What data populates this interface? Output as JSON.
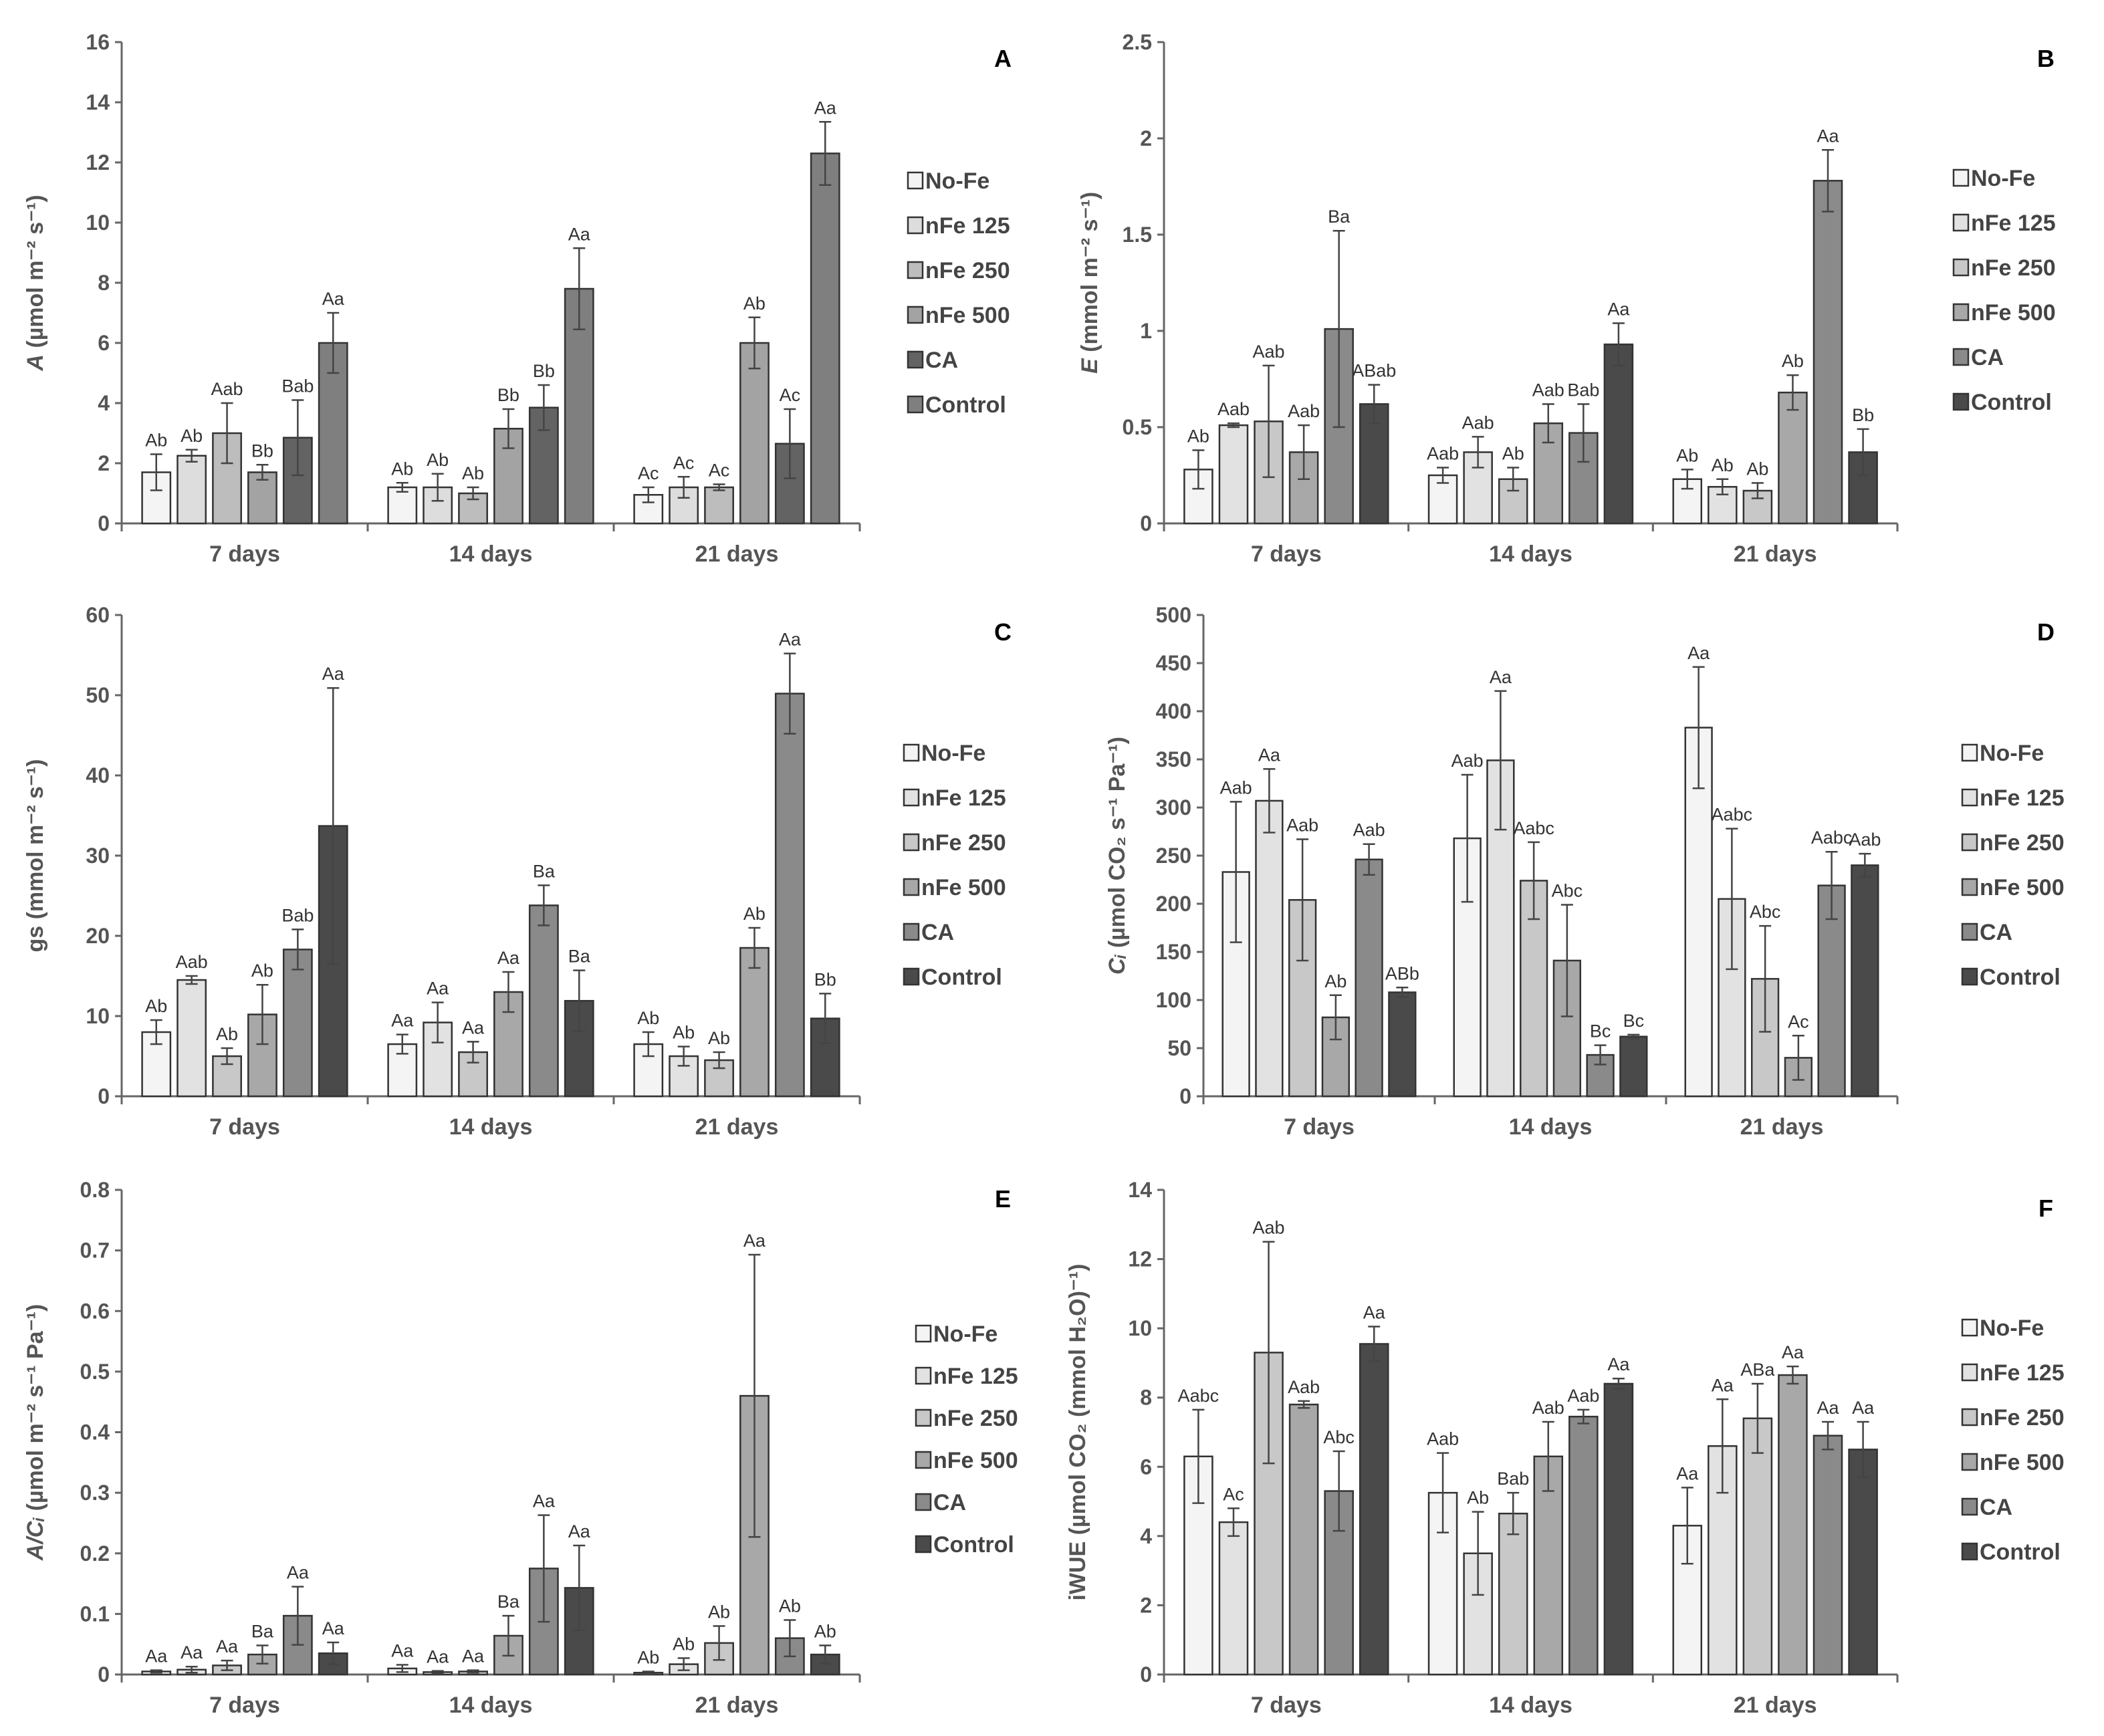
{
  "chart_data": [
    {
      "panel": "A",
      "type": "bar",
      "ylabel_italic": "A",
      "ylabel_rest": " (µmol m⁻² s⁻¹)",
      "ylim": [
        0,
        16
      ],
      "yticks": [
        "0",
        "2",
        "4",
        "6",
        "8",
        "10",
        "12",
        "14",
        "16"
      ],
      "ytick_values": [
        0,
        2,
        4,
        6,
        8,
        10,
        12,
        14,
        16
      ],
      "categories": [
        "7 days",
        "14 days",
        "21 days"
      ],
      "series": [
        {
          "name": "No-Fe",
          "color": "#f4f4f4",
          "values": [
            1.7,
            1.2,
            0.95
          ],
          "errors": [
            0.6,
            0.15,
            0.25
          ],
          "labels": [
            "Ab",
            "Ab",
            "Ac"
          ]
        },
        {
          "name": "nFe 125",
          "color": "#dddddd",
          "values": [
            2.25,
            1.2,
            1.2
          ],
          "errors": [
            0.2,
            0.45,
            0.35
          ],
          "labels": [
            "Ab",
            "Ab",
            "Ac"
          ]
        },
        {
          "name": "nFe 250",
          "color": "#bdbdbd",
          "values": [
            3.0,
            1.0,
            1.2
          ],
          "errors": [
            1.0,
            0.2,
            0.1
          ],
          "labels": [
            "Aab",
            "Ab",
            "Ac"
          ]
        },
        {
          "name": "nFe 500",
          "color": "#a3a3a3",
          "values": [
            1.7,
            3.15,
            6.0
          ],
          "errors": [
            0.25,
            0.65,
            0.85
          ],
          "labels": [
            "Bb",
            "Bb",
            "Ab"
          ]
        },
        {
          "name": "CA",
          "color": "#636363",
          "values": [
            2.85,
            3.85,
            2.65
          ],
          "errors": [
            1.25,
            0.75,
            1.15
          ],
          "labels": [
            "Bab",
            "Bb",
            "Ac"
          ]
        },
        {
          "name": "Control",
          "color": "#7f7f7f",
          "values": [
            6.0,
            7.8,
            12.3
          ],
          "errors": [
            1.0,
            1.35,
            1.05
          ],
          "labels": [
            "Aa",
            "Aa",
            "Aa"
          ]
        }
      ]
    },
    {
      "panel": "B",
      "type": "bar",
      "ylabel_italic": "E",
      "ylabel_rest": " (mmol m⁻² s⁻¹)",
      "ylim": [
        0,
        2.5
      ],
      "yticks": [
        "0",
        "0.5",
        "1",
        "1.5",
        "2",
        "2.5"
      ],
      "ytick_values": [
        0,
        0.5,
        1,
        1.5,
        2,
        2.5
      ],
      "categories": [
        "7 days",
        "14 days",
        "21 days"
      ],
      "series": [
        {
          "name": "No-Fe",
          "color": "#f4f4f4",
          "values": [
            0.28,
            0.25,
            0.23
          ],
          "errors": [
            0.1,
            0.04,
            0.05
          ],
          "labels": [
            "Ab",
            "Aab",
            "Ab"
          ]
        },
        {
          "name": "nFe 125",
          "color": "#e2e2e2",
          "values": [
            0.51,
            0.37,
            0.19
          ],
          "errors": [
            0.01,
            0.08,
            0.04
          ],
          "labels": [
            "Aab",
            "Aab",
            "Ab"
          ]
        },
        {
          "name": "nFe 250",
          "color": "#c8c8c8",
          "values": [
            0.53,
            0.23,
            0.17
          ],
          "errors": [
            0.29,
            0.06,
            0.04
          ],
          "labels": [
            "Aab",
            "Ab",
            "Ab"
          ]
        },
        {
          "name": "nFe 500",
          "color": "#a8a8a8",
          "values": [
            0.37,
            0.52,
            0.68
          ],
          "errors": [
            0.14,
            0.1,
            0.09
          ],
          "labels": [
            "Aab",
            "Aab",
            "Ab"
          ]
        },
        {
          "name": "CA",
          "color": "#8a8a8a",
          "values": [
            1.01,
            0.47,
            1.78
          ],
          "errors": [
            0.51,
            0.15,
            0.16
          ],
          "labels": [
            "Ba",
            "Bab",
            "Aa"
          ]
        },
        {
          "name": "Control",
          "color": "#4a4a4a",
          "values": [
            0.62,
            0.93,
            0.37
          ],
          "errors": [
            0.1,
            0.11,
            0.12
          ],
          "labels": [
            "ABab",
            "Aa",
            "Bb"
          ]
        }
      ]
    },
    {
      "panel": "C",
      "type": "bar",
      "ylabel_italic": "",
      "ylabel_rest": "gs (mmol m⁻² s⁻¹)",
      "ylim": [
        0,
        60
      ],
      "yticks": [
        "0",
        "10",
        "20",
        "30",
        "40",
        "50",
        "60"
      ],
      "ytick_values": [
        0,
        10,
        20,
        30,
        40,
        50,
        60
      ],
      "categories": [
        "7 days",
        "14 days",
        "21 days"
      ],
      "series": [
        {
          "name": "No-Fe",
          "color": "#f4f4f4",
          "values": [
            8.0,
            6.5,
            6.5
          ],
          "errors": [
            1.5,
            1.2,
            1.5
          ],
          "labels": [
            "Ab",
            "Aa",
            "Ab"
          ]
        },
        {
          "name": "nFe 125",
          "color": "#e2e2e2",
          "values": [
            14.5,
            9.2,
            5.0
          ],
          "errors": [
            0.5,
            2.5,
            1.2
          ],
          "labels": [
            "Aab",
            "Aa",
            "Ab"
          ]
        },
        {
          "name": "nFe 250",
          "color": "#c8c8c8",
          "values": [
            5.0,
            5.5,
            4.5
          ],
          "errors": [
            1.0,
            1.3,
            1.0
          ],
          "labels": [
            "Ab",
            "Aa",
            "Ab"
          ]
        },
        {
          "name": "nFe 500",
          "color": "#a8a8a8",
          "values": [
            10.2,
            13.0,
            18.5
          ],
          "errors": [
            3.7,
            2.5,
            2.5
          ],
          "labels": [
            "Ab",
            "Aa",
            "Ab"
          ]
        },
        {
          "name": "CA",
          "color": "#8a8a8a",
          "values": [
            18.3,
            23.8,
            50.2
          ],
          "errors": [
            2.5,
            2.5,
            5.0
          ],
          "labels": [
            "Bab",
            "Ba",
            "Aa"
          ]
        },
        {
          "name": "Control",
          "color": "#4a4a4a",
          "values": [
            33.7,
            11.9,
            9.7
          ],
          "errors": [
            17.2,
            3.8,
            3.1
          ],
          "labels": [
            "Aa",
            "Ba",
            "Bb"
          ]
        }
      ]
    },
    {
      "panel": "D",
      "type": "bar",
      "ylabel_italic": "Cᵢ",
      "ylabel_rest": " (µmol CO₂ s⁻¹ Pa⁻¹)",
      "ylim": [
        0,
        500
      ],
      "yticks": [
        "0",
        "50",
        "100",
        "150",
        "200",
        "250",
        "300",
        "350",
        "400",
        "450",
        "500"
      ],
      "ytick_values": [
        0,
        50,
        100,
        150,
        200,
        250,
        300,
        350,
        400,
        450,
        500
      ],
      "categories": [
        "7 days",
        "14 days",
        "21 days"
      ],
      "series": [
        {
          "name": "No-Fe",
          "color": "#f4f4f4",
          "values": [
            233,
            268,
            383
          ],
          "errors": [
            73,
            66,
            63
          ],
          "labels": [
            "Aab",
            "Aab",
            "Aa"
          ]
        },
        {
          "name": "nFe 125",
          "color": "#e2e2e2",
          "values": [
            307,
            349,
            205
          ],
          "errors": [
            33,
            72,
            73
          ],
          "labels": [
            "Aa",
            "Aa",
            "Aabc"
          ]
        },
        {
          "name": "nFe 250",
          "color": "#c8c8c8",
          "values": [
            204,
            224,
            122
          ],
          "errors": [
            63,
            40,
            55
          ],
          "labels": [
            "Aab",
            "Aabc",
            "Abc"
          ]
        },
        {
          "name": "nFe 500",
          "color": "#a8a8a8",
          "values": [
            82,
            141,
            40
          ],
          "errors": [
            23,
            58,
            23
          ],
          "labels": [
            "Ab",
            "Abc",
            "Ac"
          ]
        },
        {
          "name": "CA",
          "color": "#8a8a8a",
          "values": [
            246,
            43,
            219
          ],
          "errors": [
            16,
            10,
            35
          ],
          "labels": [
            "Aab",
            "Bc",
            "Aabc"
          ]
        },
        {
          "name": "Control",
          "color": "#4a4a4a",
          "values": [
            108,
            62,
            240
          ],
          "errors": [
            5,
            2,
            12
          ],
          "labels": [
            "ABb",
            "Bc",
            "Aab"
          ]
        }
      ]
    },
    {
      "panel": "E",
      "type": "bar",
      "ylabel_italic": "A/Cᵢ",
      "ylabel_rest": " (µmol m⁻² s⁻¹ Pa⁻¹)",
      "ylim": [
        0,
        0.8
      ],
      "yticks": [
        "0",
        "0.1",
        "0.2",
        "0.3",
        "0.4",
        "0.5",
        "0.6",
        "0.7",
        "0.8"
      ],
      "ytick_values": [
        0,
        0.1,
        0.2,
        0.3,
        0.4,
        0.5,
        0.6,
        0.7,
        0.8
      ],
      "categories": [
        "7 days",
        "14 days",
        "21 days"
      ],
      "series": [
        {
          "name": "No-Fe",
          "color": "#f4f4f4",
          "values": [
            0.005,
            0.01,
            0.003
          ],
          "errors": [
            0.002,
            0.006,
            0.002
          ],
          "labels": [
            "Aa",
            "Aa",
            "Ab"
          ]
        },
        {
          "name": "nFe 125",
          "color": "#e2e2e2",
          "values": [
            0.008,
            0.004,
            0.017
          ],
          "errors": [
            0.005,
            0.002,
            0.01
          ],
          "labels": [
            "Aa",
            "Aa",
            "Ab"
          ]
        },
        {
          "name": "nFe 250",
          "color": "#c8c8c8",
          "values": [
            0.015,
            0.005,
            0.052
          ],
          "errors": [
            0.008,
            0.002,
            0.028
          ],
          "labels": [
            "Aa",
            "Aa",
            "Ab"
          ]
        },
        {
          "name": "nFe 500",
          "color": "#a8a8a8",
          "values": [
            0.033,
            0.064,
            0.46
          ],
          "errors": [
            0.015,
            0.033,
            0.233
          ],
          "labels": [
            "Ba",
            "Ba",
            "Aa"
          ]
        },
        {
          "name": "CA",
          "color": "#8a8a8a",
          "values": [
            0.097,
            0.175,
            0.06
          ],
          "errors": [
            0.048,
            0.088,
            0.03
          ],
          "labels": [
            "Aa",
            "Aa",
            "Ab"
          ]
        },
        {
          "name": "Control",
          "color": "#4a4a4a",
          "values": [
            0.035,
            0.143,
            0.033
          ],
          "errors": [
            0.018,
            0.07,
            0.015
          ],
          "labels": [
            "Aa",
            "Aa",
            "Ab"
          ]
        }
      ]
    },
    {
      "panel": "F",
      "type": "bar",
      "ylabel_italic": "",
      "ylabel_rest": "iWUE (µmol CO₂ (mmol H₂O)⁻¹)",
      "ylim": [
        0,
        14
      ],
      "yticks": [
        "0",
        "2",
        "4",
        "6",
        "8",
        "10",
        "12",
        "14"
      ],
      "ytick_values": [
        0,
        2,
        4,
        6,
        8,
        10,
        12,
        14
      ],
      "categories": [
        "7 days",
        "14 days",
        "21 days"
      ],
      "series": [
        {
          "name": "No-Fe",
          "color": "#f4f4f4",
          "values": [
            6.3,
            5.25,
            4.3
          ],
          "errors": [
            1.35,
            1.15,
            1.1
          ],
          "labels": [
            "Aabc",
            "Aab",
            "Aa"
          ]
        },
        {
          "name": "nFe 125",
          "color": "#e2e2e2",
          "values": [
            4.4,
            3.5,
            6.6
          ],
          "errors": [
            0.4,
            1.2,
            1.35
          ],
          "labels": [
            "Ac",
            "Ab",
            "Aa"
          ]
        },
        {
          "name": "nFe 250",
          "color": "#c8c8c8",
          "values": [
            9.3,
            4.65,
            7.4
          ],
          "errors": [
            3.2,
            0.6,
            1.0
          ],
          "labels": [
            "Aab",
            "Bab",
            "ABa"
          ]
        },
        {
          "name": "nFe 500",
          "color": "#a8a8a8",
          "values": [
            7.8,
            6.3,
            8.65
          ],
          "errors": [
            0.1,
            1.0,
            0.25
          ],
          "labels": [
            "Aab",
            "Aab",
            "Aa"
          ]
        },
        {
          "name": "CA",
          "color": "#8a8a8a",
          "values": [
            5.3,
            7.45,
            6.9
          ],
          "errors": [
            1.15,
            0.2,
            0.4
          ],
          "labels": [
            "Abc",
            "Aab",
            "Aa"
          ]
        },
        {
          "name": "Control",
          "color": "#4a4a4a",
          "values": [
            9.55,
            8.4,
            6.5
          ],
          "errors": [
            0.5,
            0.15,
            0.8
          ],
          "labels": [
            "Aa",
            "Aa",
            "Aa"
          ]
        }
      ]
    }
  ]
}
